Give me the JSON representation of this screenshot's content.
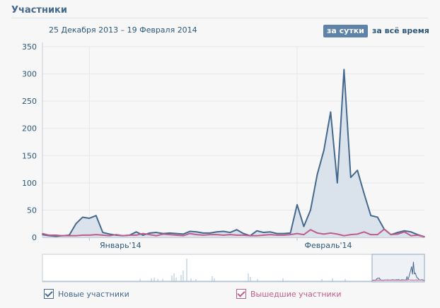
{
  "header": {
    "title": "Участники"
  },
  "period": {
    "range": "25 Декабря 2013 – 19 Февраля 2014"
  },
  "buttons": {
    "day": "за сутки",
    "all": "за всё время"
  },
  "legend": {
    "new": "Новые участники",
    "left": "Вышедшие участники"
  },
  "colors": {
    "new": "#45688e",
    "left": "#c05c8b",
    "fill": "#d5dfe9"
  },
  "chart_data": {
    "type": "area",
    "x_tick_labels": [
      "Январь'14",
      "Февраль'14"
    ],
    "x_tick_dates": [
      "2014-01-01",
      "2014-02-01"
    ],
    "y_ticks": [
      0,
      50,
      100,
      150,
      200,
      250,
      300,
      350
    ],
    "ylim": [
      0,
      350
    ],
    "x": [
      "2013-12-25",
      "2013-12-26",
      "2013-12-27",
      "2013-12-28",
      "2013-12-29",
      "2013-12-30",
      "2013-12-31",
      "2014-01-01",
      "2014-01-02",
      "2014-01-03",
      "2014-01-04",
      "2014-01-05",
      "2014-01-06",
      "2014-01-07",
      "2014-01-08",
      "2014-01-09",
      "2014-01-10",
      "2014-01-11",
      "2014-01-12",
      "2014-01-13",
      "2014-01-14",
      "2014-01-15",
      "2014-01-16",
      "2014-01-17",
      "2014-01-18",
      "2014-01-19",
      "2014-01-20",
      "2014-01-21",
      "2014-01-22",
      "2014-01-23",
      "2014-01-24",
      "2014-01-25",
      "2014-01-26",
      "2014-01-27",
      "2014-01-28",
      "2014-01-29",
      "2014-01-30",
      "2014-01-31",
      "2014-02-01",
      "2014-02-02",
      "2014-02-03",
      "2014-02-04",
      "2014-02-05",
      "2014-02-06",
      "2014-02-07",
      "2014-02-08",
      "2014-02-09",
      "2014-02-10",
      "2014-02-11",
      "2014-02-12",
      "2014-02-13",
      "2014-02-14",
      "2014-02-15",
      "2014-02-16",
      "2014-02-17",
      "2014-02-18",
      "2014-02-19",
      "2014-02-20"
    ],
    "grid": true,
    "series": [
      {
        "name": "Новые участники",
        "values": [
          5,
          3,
          2,
          3,
          4,
          25,
          37,
          35,
          40,
          9,
          6,
          4,
          3,
          4,
          10,
          4,
          8,
          9,
          7,
          8,
          7,
          6,
          11,
          10,
          8,
          8,
          10,
          11,
          9,
          14,
          7,
          3,
          12,
          9,
          10,
          7,
          7,
          8,
          60,
          20,
          50,
          115,
          160,
          230,
          100,
          308,
          110,
          123,
          80,
          40,
          37,
          15,
          5,
          9,
          12,
          10,
          5,
          1
        ]
      },
      {
        "name": "Вышедшие участники",
        "values": [
          7,
          4,
          4,
          3,
          3,
          3,
          4,
          4,
          5,
          4,
          3,
          5,
          3,
          4,
          4,
          7,
          5,
          3,
          6,
          5,
          4,
          3,
          7,
          5,
          4,
          5,
          5,
          4,
          5,
          4,
          4,
          3,
          3,
          4,
          5,
          4,
          4,
          5,
          7,
          5,
          14,
          8,
          6,
          8,
          6,
          3,
          5,
          6,
          10,
          5,
          5,
          15,
          5,
          6,
          10,
          3,
          4,
          1
        ]
      }
    ]
  }
}
